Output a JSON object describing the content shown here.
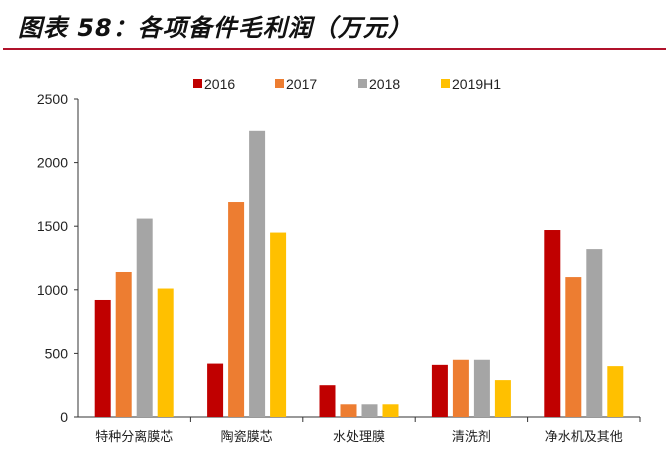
{
  "title": "图表 58：各项备件毛利润（万元）",
  "chart_data": {
    "type": "bar",
    "title": "图表 58：各项备件毛利润（万元）",
    "xlabel": "",
    "ylabel": "",
    "ylim": [
      0,
      2500
    ],
    "yticks": [
      0,
      500,
      1000,
      1500,
      2000,
      2500
    ],
    "legend_position": "top",
    "categories": [
      "特种分离膜芯",
      "陶瓷膜芯",
      "水处理膜",
      "清洗剂",
      "净水机及其他"
    ],
    "series": [
      {
        "name": "2016",
        "color": "#c00000",
        "values": [
          920,
          420,
          250,
          410,
          1470
        ]
      },
      {
        "name": "2017",
        "color": "#ed7d31",
        "values": [
          1140,
          1690,
          100,
          450,
          1100
        ]
      },
      {
        "name": "2018",
        "color": "#a5a5a5",
        "values": [
          1560,
          2250,
          100,
          450,
          1320
        ]
      },
      {
        "name": "2019H1",
        "color": "#ffc000",
        "values": [
          1010,
          1450,
          100,
          290,
          400
        ]
      }
    ]
  }
}
